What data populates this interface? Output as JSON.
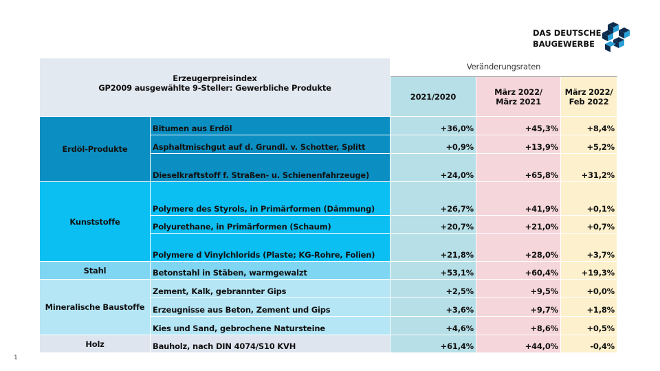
{
  "logo": {
    "line1": "DAS DEUTSCHE",
    "line2": "BAUGEWERBE"
  },
  "table": {
    "title": "Erzeugerpreisindex",
    "subtitle": "GP2009 ausgewählte 9-Steller: Gewerbliche Produkte",
    "group_header": "Veränderungsraten",
    "columns": [
      "2021/2020",
      "März 2022/\nMärz 2021",
      "März 2022/\nFeb 2022"
    ],
    "groups": [
      {
        "name": "Erdöl-Produkte",
        "rows": [
          [
            "Bitumen aus Erdöl",
            "+36,0%",
            "+45,3%",
            "+8,4%"
          ],
          [
            "Asphaltmischgut auf d. Grundl. v. Schotter, Splitt",
            "+0,9%",
            "+13,9%",
            "+5,2%"
          ],
          [
            "Dieselkraftstoff f. Straßen- u. Schienenfahrzeuge)",
            "+24,0%",
            "+65,8%",
            "+31,2%"
          ]
        ]
      },
      {
        "name": "Kunststoffe",
        "rows": [
          [
            "Polymere des Styrols, in Primärformen (Dämmung)",
            "+26,7%",
            "+41,9%",
            "+0,1%"
          ],
          [
            "Polyurethane, in Primärformen (Schaum)",
            "+20,7%",
            "+21,0%",
            "+0,7%"
          ],
          [
            "Polymere d Vinylchlorids (Plaste; KG-Rohre, Folien)",
            "+21,8%",
            "+28,0%",
            "+3,7%"
          ]
        ]
      },
      {
        "name": "Stahl",
        "rows": [
          [
            "Betonstahl in Stäben, warmgewalzt",
            "+53,1%",
            "+60,4%",
            "+19,3%"
          ]
        ]
      },
      {
        "name": "Mineralische Baustoffe",
        "rows": [
          [
            "Zement, Kalk, gebrannter Gips",
            "+2,5%",
            "+9,5%",
            "+0,0%"
          ],
          [
            "Erzeugnisse aus Beton, Zement und Gips",
            "+3,6%",
            "+9,7%",
            "+1,8%"
          ],
          [
            "Kies und Sand, gebrochene Natursteine",
            "+4,6%",
            "+8,6%",
            "+0,5%"
          ]
        ]
      },
      {
        "name": "Holz",
        "rows": [
          [
            "Bauholz, nach DIN 4074/S10 KVH",
            "+61,4%",
            "+44,0%",
            "-0,4%"
          ]
        ]
      }
    ]
  },
  "page_number": "1"
}
